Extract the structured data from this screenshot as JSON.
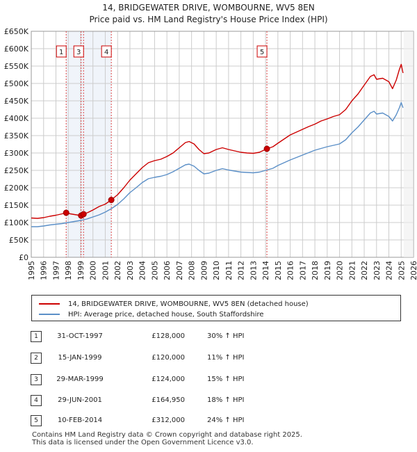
{
  "title": {
    "line1": "14, BRIDGEWATER DRIVE, WOMBOURNE, WV5 8EN",
    "line2": "Price paid vs. HM Land Registry's House Price Index (HPI)"
  },
  "chart_data": {
    "type": "line",
    "title": "14, BRIDGEWATER DRIVE, WOMBOURNE, WV5 8EN — Price paid vs. HM Land Registry's House Price Index (HPI)",
    "xlim": [
      1995,
      2026
    ],
    "ylim": [
      0,
      650000
    ],
    "x_ticks": [
      "1995",
      "1996",
      "1997",
      "1998",
      "1999",
      "2000",
      "2001",
      "2002",
      "2003",
      "2004",
      "2005",
      "2006",
      "2007",
      "2008",
      "2009",
      "2010",
      "2011",
      "2012",
      "2013",
      "2014",
      "2015",
      "2016",
      "2017",
      "2018",
      "2019",
      "2020",
      "2021",
      "2022",
      "2023",
      "2024",
      "2025",
      "2026"
    ],
    "y_ticks": [
      {
        "value": 0,
        "label": "£0"
      },
      {
        "value": 50000,
        "label": "£50K"
      },
      {
        "value": 100000,
        "label": "£100K"
      },
      {
        "value": 150000,
        "label": "£150K"
      },
      {
        "value": 200000,
        "label": "£200K"
      },
      {
        "value": 250000,
        "label": "£250K"
      },
      {
        "value": 300000,
        "label": "£300K"
      },
      {
        "value": 350000,
        "label": "£350K"
      },
      {
        "value": 400000,
        "label": "£400K"
      },
      {
        "value": 450000,
        "label": "£450K"
      },
      {
        "value": 500000,
        "label": "£500K"
      },
      {
        "value": 550000,
        "label": "£550K"
      },
      {
        "value": 600000,
        "label": "£600K"
      },
      {
        "value": 650000,
        "label": "£650K"
      }
    ],
    "grid": true,
    "legend_position": "below",
    "series": [
      {
        "name": "14, BRIDGEWATER DRIVE, WOMBOURNE, WV5 8EN (detached house)",
        "color": "#cc0000",
        "points": [
          [
            1995.0,
            113000
          ],
          [
            1995.5,
            112000
          ],
          [
            1996.0,
            114000
          ],
          [
            1996.5,
            118000
          ],
          [
            1997.0,
            121000
          ],
          [
            1997.5,
            125000
          ],
          [
            1997.83,
            128000
          ],
          [
            1998.0,
            126000
          ],
          [
            1998.5,
            123000
          ],
          [
            1999.04,
            120000
          ],
          [
            1999.24,
            124000
          ],
          [
            1999.6,
            129000
          ],
          [
            2000.0,
            136000
          ],
          [
            2000.5,
            146000
          ],
          [
            2001.0,
            153000
          ],
          [
            2001.49,
            164950
          ],
          [
            2002.0,
            180000
          ],
          [
            2002.5,
            200000
          ],
          [
            2003.0,
            222000
          ],
          [
            2003.5,
            240000
          ],
          [
            2004.0,
            258000
          ],
          [
            2004.5,
            272000
          ],
          [
            2005.0,
            278000
          ],
          [
            2005.5,
            282000
          ],
          [
            2006.0,
            290000
          ],
          [
            2006.5,
            300000
          ],
          [
            2007.0,
            315000
          ],
          [
            2007.5,
            330000
          ],
          [
            2007.8,
            333000
          ],
          [
            2008.2,
            326000
          ],
          [
            2008.6,
            310000
          ],
          [
            2009.0,
            298000
          ],
          [
            2009.4,
            300000
          ],
          [
            2010.0,
            310000
          ],
          [
            2010.5,
            315000
          ],
          [
            2011.0,
            310000
          ],
          [
            2011.5,
            306000
          ],
          [
            2012.0,
            302000
          ],
          [
            2012.5,
            300000
          ],
          [
            2013.0,
            299000
          ],
          [
            2013.5,
            302000
          ],
          [
            2014.11,
            312000
          ],
          [
            2014.6,
            318000
          ],
          [
            2015.0,
            328000
          ],
          [
            2015.5,
            340000
          ],
          [
            2016.0,
            352000
          ],
          [
            2016.5,
            360000
          ],
          [
            2017.0,
            368000
          ],
          [
            2017.5,
            376000
          ],
          [
            2018.0,
            383000
          ],
          [
            2018.5,
            392000
          ],
          [
            2019.0,
            398000
          ],
          [
            2019.5,
            405000
          ],
          [
            2020.0,
            410000
          ],
          [
            2020.5,
            425000
          ],
          [
            2021.0,
            450000
          ],
          [
            2021.5,
            470000
          ],
          [
            2022.0,
            495000
          ],
          [
            2022.5,
            520000
          ],
          [
            2022.8,
            525000
          ],
          [
            2023.0,
            512000
          ],
          [
            2023.5,
            515000
          ],
          [
            2024.0,
            505000
          ],
          [
            2024.3,
            485000
          ],
          [
            2024.6,
            510000
          ],
          [
            2024.85,
            540000
          ],
          [
            2025.0,
            555000
          ],
          [
            2025.15,
            530000
          ]
        ]
      },
      {
        "name": "HPI: Average price, detached house, South Staffordshire",
        "color": "#5b8fc7",
        "points": [
          [
            1995.0,
            88000
          ],
          [
            1995.5,
            88000
          ],
          [
            1996.0,
            90000
          ],
          [
            1996.5,
            93000
          ],
          [
            1997.0,
            95000
          ],
          [
            1997.5,
            97000
          ],
          [
            1998.0,
            100000
          ],
          [
            1998.5,
            103000
          ],
          [
            1999.0,
            106000
          ],
          [
            1999.5,
            110000
          ],
          [
            2000.0,
            116000
          ],
          [
            2000.5,
            122000
          ],
          [
            2001.0,
            130000
          ],
          [
            2001.5,
            140000
          ],
          [
            2002.0,
            152000
          ],
          [
            2002.5,
            168000
          ],
          [
            2003.0,
            186000
          ],
          [
            2003.5,
            200000
          ],
          [
            2004.0,
            215000
          ],
          [
            2004.5,
            226000
          ],
          [
            2005.0,
            230000
          ],
          [
            2005.5,
            233000
          ],
          [
            2006.0,
            238000
          ],
          [
            2006.5,
            246000
          ],
          [
            2007.0,
            256000
          ],
          [
            2007.5,
            266000
          ],
          [
            2007.8,
            268000
          ],
          [
            2008.2,
            262000
          ],
          [
            2008.6,
            250000
          ],
          [
            2009.0,
            240000
          ],
          [
            2009.4,
            242000
          ],
          [
            2010.0,
            250000
          ],
          [
            2010.5,
            255000
          ],
          [
            2011.0,
            251000
          ],
          [
            2011.5,
            248000
          ],
          [
            2012.0,
            245000
          ],
          [
            2012.5,
            244000
          ],
          [
            2013.0,
            243000
          ],
          [
            2013.5,
            245000
          ],
          [
            2014.0,
            250000
          ],
          [
            2014.6,
            256000
          ],
          [
            2015.0,
            264000
          ],
          [
            2015.5,
            272000
          ],
          [
            2016.0,
            280000
          ],
          [
            2016.5,
            287000
          ],
          [
            2017.0,
            294000
          ],
          [
            2017.5,
            301000
          ],
          [
            2018.0,
            308000
          ],
          [
            2018.5,
            313000
          ],
          [
            2019.0,
            318000
          ],
          [
            2019.5,
            322000
          ],
          [
            2020.0,
            326000
          ],
          [
            2020.5,
            338000
          ],
          [
            2021.0,
            358000
          ],
          [
            2021.5,
            375000
          ],
          [
            2022.0,
            395000
          ],
          [
            2022.5,
            415000
          ],
          [
            2022.8,
            420000
          ],
          [
            2023.0,
            412000
          ],
          [
            2023.5,
            415000
          ],
          [
            2024.0,
            405000
          ],
          [
            2024.3,
            392000
          ],
          [
            2024.6,
            410000
          ],
          [
            2024.85,
            430000
          ],
          [
            2025.0,
            445000
          ],
          [
            2025.15,
            430000
          ]
        ]
      }
    ],
    "sales": [
      {
        "label": "1",
        "date": "31-OCT-1997",
        "x": 1997.83,
        "price": 128000
      },
      {
        "label": "2",
        "date": "15-JAN-1999",
        "x": 1999.04,
        "price": 120000
      },
      {
        "label": "3",
        "date": "29-MAR-1999",
        "x": 1999.24,
        "price": 124000
      },
      {
        "label": "4",
        "date": "29-JUN-2001",
        "x": 2001.49,
        "price": 164950
      },
      {
        "label": "5",
        "date": "10-FEB-2014",
        "x": 2014.11,
        "price": 312000
      }
    ],
    "marker_boxes_shown": [
      "1",
      "3",
      "4",
      "5"
    ]
  },
  "legend": {
    "property": "14, BRIDGEWATER DRIVE, WOMBOURNE, WV5 8EN (detached house)",
    "hpi": "HPI: Average price, detached house, South Staffordshire",
    "property_color": "#cc0000",
    "hpi_color": "#5b8fc7"
  },
  "table": [
    {
      "num": "1",
      "date": "31-OCT-1997",
      "price": "£128,000",
      "hpi": "30% ↑ HPI"
    },
    {
      "num": "2",
      "date": "15-JAN-1999",
      "price": "£120,000",
      "hpi": "11% ↑ HPI"
    },
    {
      "num": "3",
      "date": "29-MAR-1999",
      "price": "£124,000",
      "hpi": "15% ↑ HPI"
    },
    {
      "num": "4",
      "date": "29-JUN-2001",
      "price": "£164,950",
      "hpi": "18% ↑ HPI"
    },
    {
      "num": "5",
      "date": "10-FEB-2014",
      "price": "£312,000",
      "hpi": "24% ↑ HPI"
    }
  ],
  "footer": {
    "line1": "Contains HM Land Registry data © Crown copyright and database right 2025.",
    "line2": "This data is licensed under the Open Government Licence v3.0."
  }
}
